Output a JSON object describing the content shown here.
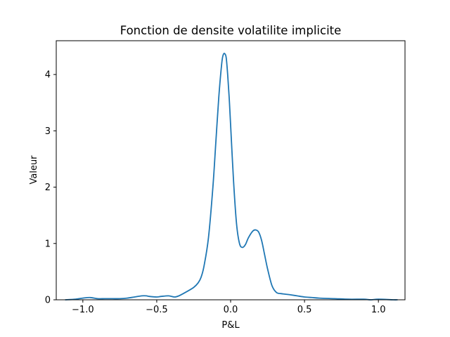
{
  "chart_data": {
    "type": "line",
    "title": "Fonction de densite volatilite implicite",
    "xlabel": "P&L",
    "ylabel": "Valeur",
    "xlim": [
      -1.18,
      1.18
    ],
    "ylim": [
      0,
      4.6
    ],
    "x_ticks": [
      -1.0,
      -0.5,
      0.0,
      0.5,
      1.0
    ],
    "x_tick_labels": [
      "−1.0",
      "−0.5",
      "0.0",
      "0.5",
      "1.0"
    ],
    "y_ticks": [
      0,
      1,
      2,
      3,
      4
    ],
    "y_tick_labels": [
      "0",
      "1",
      "2",
      "3",
      "4"
    ],
    "grid": false,
    "legend": "none",
    "line_color": "#1f77b4",
    "series": [
      {
        "x": [
          -1.12,
          -1.05,
          -1.0,
          -0.95,
          -0.9,
          -0.85,
          -0.8,
          -0.75,
          -0.7,
          -0.65,
          -0.6,
          -0.57,
          -0.55,
          -0.5,
          -0.47,
          -0.42,
          -0.38,
          -0.35,
          -0.3,
          -0.25,
          -0.22,
          -0.2,
          -0.18,
          -0.15,
          -0.12,
          -0.1,
          -0.08,
          -0.06,
          -0.05,
          -0.04,
          -0.03,
          -0.02,
          -0.01,
          0.0,
          0.02,
          0.04,
          0.06,
          0.08,
          0.1,
          0.12,
          0.15,
          0.17,
          0.19,
          0.21,
          0.23,
          0.25,
          0.28,
          0.31,
          0.34,
          0.37,
          0.4,
          0.45,
          0.5,
          0.55,
          0.6,
          0.7,
          0.8,
          0.9,
          0.95,
          1.0,
          1.1,
          1.13
        ],
        "y": [
          0.0,
          0.01,
          0.03,
          0.04,
          0.02,
          0.02,
          0.02,
          0.02,
          0.03,
          0.05,
          0.07,
          0.07,
          0.06,
          0.05,
          0.06,
          0.07,
          0.05,
          0.07,
          0.14,
          0.22,
          0.3,
          0.4,
          0.6,
          1.1,
          2.0,
          2.8,
          3.6,
          4.2,
          4.35,
          4.37,
          4.3,
          4.0,
          3.6,
          3.1,
          2.1,
          1.35,
          1.0,
          0.93,
          0.98,
          1.1,
          1.22,
          1.24,
          1.2,
          1.05,
          0.8,
          0.55,
          0.25,
          0.13,
          0.11,
          0.1,
          0.09,
          0.07,
          0.05,
          0.04,
          0.03,
          0.02,
          0.01,
          0.01,
          0.0,
          0.01,
          0.0,
          0.0
        ]
      }
    ]
  }
}
